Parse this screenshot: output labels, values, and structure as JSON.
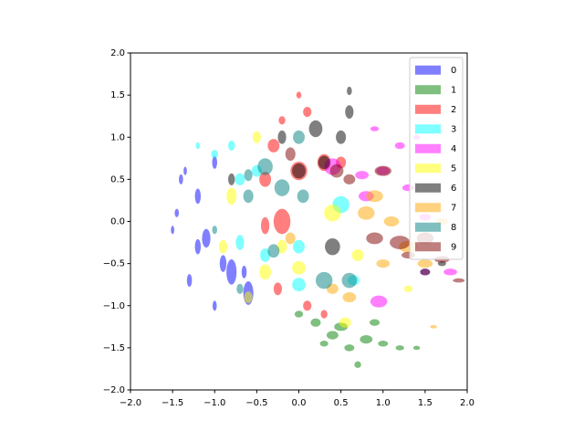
{
  "chart_data": {
    "type": "scatter",
    "alpha": 0.5,
    "xlim": [
      -2,
      2
    ],
    "ylim": [
      -2,
      2
    ],
    "xticks": [
      {
        "value": -2,
        "label": "−2.0"
      },
      {
        "value": -1.5,
        "label": "−1.5"
      },
      {
        "value": -1,
        "label": "−1.0"
      },
      {
        "value": -0.5,
        "label": "−0.5"
      },
      {
        "value": 0,
        "label": "0.0"
      },
      {
        "value": 0.5,
        "label": "0.5"
      },
      {
        "value": 1,
        "label": "1.0"
      },
      {
        "value": 1.5,
        "label": "1.5"
      },
      {
        "value": 2,
        "label": "2.0"
      }
    ],
    "yticks": [
      {
        "value": -2,
        "label": "−2.0"
      },
      {
        "value": -1.5,
        "label": "−1.5"
      },
      {
        "value": -1,
        "label": "−1.0"
      },
      {
        "value": -0.5,
        "label": "−0.5"
      },
      {
        "value": 0,
        "label": "0.0"
      },
      {
        "value": 0.5,
        "label": "0.5"
      },
      {
        "value": 1,
        "label": "1.0"
      },
      {
        "value": 1.5,
        "label": "1.5"
      },
      {
        "value": 2,
        "label": "2.0"
      }
    ],
    "legend": "upper right",
    "series": [
      {
        "name": "0",
        "color": "#0000ff",
        "x": [
          -1.5,
          -1.4,
          -1.3,
          -1.2,
          -1.1,
          -1.0,
          -0.9,
          -0.8,
          -1.0,
          -1.2,
          -0.6,
          -0.65,
          -1.35,
          -1.45
        ],
        "y": [
          -0.1,
          0.5,
          -0.7,
          0.3,
          -0.2,
          0.7,
          -0.5,
          -0.6,
          -1.0,
          -0.3,
          -0.85,
          -0.6,
          0.6,
          0.1
        ],
        "widths": [
          0.04,
          0.05,
          0.06,
          0.07,
          0.1,
          0.06,
          0.08,
          0.12,
          0.05,
          0.07,
          0.12,
          0.06,
          0.04,
          0.05
        ],
        "heights": [
          0.1,
          0.12,
          0.15,
          0.18,
          0.22,
          0.15,
          0.2,
          0.3,
          0.12,
          0.18,
          0.28,
          0.15,
          0.1,
          0.1
        ]
      },
      {
        "name": "1",
        "color": "#008000",
        "x": [
          0.0,
          0.2,
          0.4,
          0.6,
          0.8,
          1.0,
          1.2,
          0.7,
          0.5,
          0.9,
          1.4,
          0.3
        ],
        "y": [
          -1.1,
          -1.2,
          -1.35,
          -1.5,
          -1.4,
          -1.45,
          -1.5,
          -1.7,
          -1.25,
          -1.2,
          -1.5,
          -1.45
        ],
        "widths": [
          0.1,
          0.12,
          0.14,
          0.12,
          0.15,
          0.12,
          0.1,
          0.08,
          0.16,
          0.12,
          0.08,
          0.1
        ],
        "heights": [
          0.08,
          0.1,
          0.1,
          0.08,
          0.1,
          0.07,
          0.06,
          0.08,
          0.1,
          0.08,
          0.05,
          0.07
        ]
      },
      {
        "name": "2",
        "color": "#ff0000",
        "x": [
          -0.2,
          0.0,
          0.1,
          -0.3,
          0.0,
          -0.2,
          -0.4,
          0.3,
          -0.4,
          -0.25,
          0.1,
          0.3,
          0.5
        ],
        "y": [
          1.2,
          1.5,
          1.3,
          0.9,
          0.6,
          0.0,
          0.5,
          0.7,
          -0.05,
          -0.8,
          -1.0,
          -1.1,
          0.7
        ],
        "widths": [
          0.08,
          0.06,
          0.1,
          0.14,
          0.2,
          0.2,
          0.14,
          0.16,
          0.1,
          0.1,
          0.1,
          0.08,
          0.12
        ],
        "heights": [
          0.1,
          0.08,
          0.12,
          0.16,
          0.22,
          0.3,
          0.18,
          0.2,
          0.2,
          0.15,
          0.12,
          0.1,
          0.14
        ]
      },
      {
        "name": "3",
        "color": "#00ffff",
        "x": [
          -1.2,
          -1.0,
          -0.7,
          -0.8,
          -0.7,
          -0.4,
          0.0,
          0.0,
          0.5,
          0.65,
          -0.5
        ],
        "y": [
          0.9,
          0.8,
          0.5,
          0.9,
          -0.25,
          -0.4,
          -0.3,
          -0.75,
          0.2,
          -0.7,
          0.6
        ],
        "widths": [
          0.05,
          0.08,
          0.12,
          0.08,
          0.1,
          0.12,
          0.14,
          0.16,
          0.2,
          0.14,
          0.12
        ],
        "heights": [
          0.08,
          0.1,
          0.14,
          0.12,
          0.18,
          0.16,
          0.16,
          0.16,
          0.2,
          0.12,
          0.14
        ]
      },
      {
        "name": "4",
        "color": "#ff00ff",
        "x": [
          0.9,
          1.2,
          1.0,
          0.8,
          1.3,
          0.4,
          0.75,
          1.5,
          1.8,
          1.5,
          0.95,
          1.4
        ],
        "y": [
          1.1,
          0.9,
          0.6,
          0.3,
          0.4,
          0.65,
          0.55,
          0.05,
          -0.6,
          -0.6,
          -0.95,
          1.0
        ],
        "widths": [
          0.1,
          0.12,
          0.16,
          0.18,
          0.14,
          0.2,
          0.16,
          0.14,
          0.16,
          0.12,
          0.2,
          0.08
        ],
        "heights": [
          0.06,
          0.08,
          0.1,
          0.12,
          0.08,
          0.2,
          0.1,
          0.08,
          0.08,
          0.08,
          0.14,
          0.06
        ]
      },
      {
        "name": "5",
        "color": "#ffff00",
        "x": [
          -0.5,
          -0.8,
          -0.9,
          -0.4,
          0.0,
          0.4,
          0.7,
          0.55,
          1.3,
          -0.2,
          -0.6
        ],
        "y": [
          1.0,
          0.3,
          -0.3,
          -0.6,
          -0.55,
          0.1,
          -0.4,
          -1.2,
          -0.8,
          -0.3,
          -0.9
        ],
        "widths": [
          0.1,
          0.12,
          0.1,
          0.14,
          0.16,
          0.2,
          0.14,
          0.14,
          0.1,
          0.12,
          0.1
        ],
        "heights": [
          0.14,
          0.2,
          0.16,
          0.18,
          0.16,
          0.2,
          0.14,
          0.12,
          0.08,
          0.16,
          0.14
        ]
      },
      {
        "name": "6",
        "color": "#000000",
        "x": [
          0.6,
          0.2,
          0.5,
          0.3,
          0.0,
          -0.2,
          0.4,
          1.5,
          -0.8,
          1.7,
          0.6
        ],
        "y": [
          1.3,
          1.1,
          1.0,
          0.7,
          0.6,
          1.0,
          -0.3,
          -0.6,
          0.5,
          -0.5,
          1.55
        ],
        "widths": [
          0.1,
          0.16,
          0.12,
          0.14,
          0.16,
          0.1,
          0.18,
          0.12,
          0.08,
          0.1,
          0.06
        ],
        "heights": [
          0.16,
          0.2,
          0.16,
          0.16,
          0.18,
          0.16,
          0.2,
          0.08,
          0.14,
          0.06,
          0.1
        ]
      },
      {
        "name": "7",
        "color": "#ffa500",
        "x": [
          0.9,
          1.1,
          1.3,
          1.5,
          0.8,
          1.0,
          0.6,
          0.4,
          -0.1,
          1.7,
          1.6
        ],
        "y": [
          0.3,
          0.0,
          -0.3,
          -0.5,
          0.1,
          -0.5,
          -0.9,
          -0.8,
          -0.2,
          0.0,
          -1.25
        ],
        "widths": [
          0.2,
          0.18,
          0.22,
          0.18,
          0.2,
          0.16,
          0.16,
          0.14,
          0.12,
          0.14,
          0.08
        ],
        "heights": [
          0.14,
          0.12,
          0.14,
          0.1,
          0.16,
          0.1,
          0.12,
          0.12,
          0.14,
          0.08,
          0.04
        ]
      },
      {
        "name": "8",
        "color": "#008080",
        "x": [
          -0.6,
          -0.4,
          -0.2,
          0.05,
          -0.3,
          -0.7,
          0.3,
          0.6,
          0.0,
          -0.6,
          -1.0
        ],
        "y": [
          0.3,
          0.65,
          0.4,
          0.3,
          -0.35,
          -0.8,
          -0.7,
          -0.7,
          1.0,
          0.55,
          -0.1
        ],
        "widths": [
          0.12,
          0.18,
          0.18,
          0.14,
          0.14,
          0.08,
          0.2,
          0.18,
          0.14,
          0.1,
          0.06
        ],
        "heights": [
          0.16,
          0.2,
          0.2,
          0.16,
          0.16,
          0.12,
          0.2,
          0.18,
          0.16,
          0.14,
          0.1
        ]
      },
      {
        "name": "9",
        "color": "#800000",
        "x": [
          0.9,
          1.2,
          1.5,
          1.9,
          1.7,
          0.45,
          1.0,
          -0.1,
          0.6,
          1.3
        ],
        "y": [
          -0.2,
          -0.25,
          -0.2,
          -0.7,
          -0.45,
          0.6,
          0.6,
          0.8,
          0.5,
          -0.4
        ],
        "widths": [
          0.2,
          0.24,
          0.2,
          0.14,
          0.18,
          0.16,
          0.2,
          0.12,
          0.14,
          0.16
        ],
        "heights": [
          0.14,
          0.16,
          0.14,
          0.05,
          0.08,
          0.16,
          0.12,
          0.16,
          0.12,
          0.08
        ]
      }
    ]
  }
}
